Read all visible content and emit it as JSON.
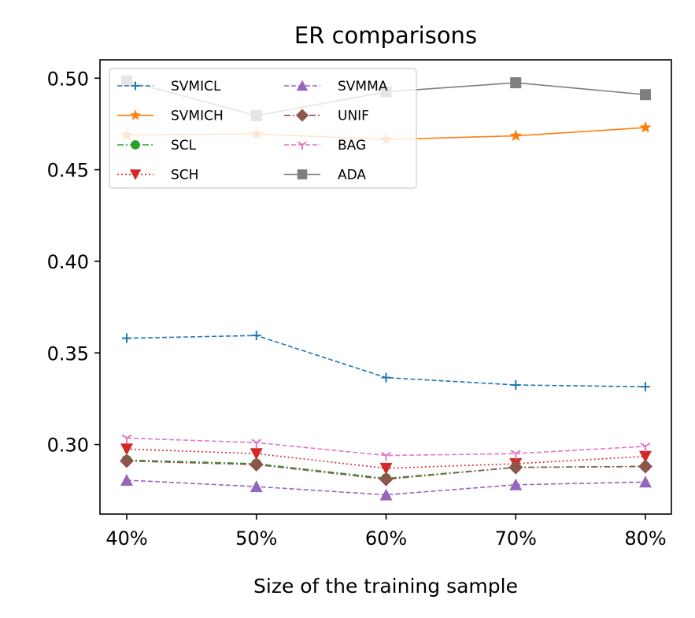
{
  "chart_data": {
    "type": "line",
    "title": "ER comparisons",
    "xlabel": "Size of the training sample",
    "ylabel": "",
    "categories": [
      "40%",
      "50%",
      "60%",
      "70%",
      "80%"
    ],
    "ylim": [
      0.262,
      0.51
    ],
    "yticks": [
      0.3,
      0.35,
      0.4,
      0.45,
      0.5
    ],
    "ytick_labels": [
      "0.30",
      "0.35",
      "0.40",
      "0.45",
      "0.50"
    ],
    "grid": false,
    "legend": {
      "placement": "top-left",
      "columns": 2
    },
    "series": [
      {
        "name": "SVMICL",
        "color": "#1f77b4",
        "dash": "dashed",
        "marker": "plus",
        "values": [
          0.358,
          0.3595,
          0.3365,
          0.3325,
          0.3315
        ]
      },
      {
        "name": "SVMICH",
        "color": "#ff7f0e",
        "dash": "solid",
        "marker": "star",
        "values": [
          0.469,
          0.4695,
          0.4665,
          0.4685,
          0.473
        ]
      },
      {
        "name": "SCL",
        "color": "#2ca02c",
        "dash": "dashdot",
        "marker": "circle",
        "values": [
          0.2915,
          0.2895,
          0.2815,
          0.2875,
          0.288
        ]
      },
      {
        "name": "SCH",
        "color": "#d62728",
        "dash": "dotted",
        "marker": "triangle-down",
        "values": [
          0.2975,
          0.295,
          0.287,
          0.2895,
          0.2935
        ]
      },
      {
        "name": "SVMMA",
        "color": "#9467bd",
        "dash": "dashed",
        "marker": "triangle-up",
        "values": [
          0.2805,
          0.277,
          0.2725,
          0.278,
          0.2795
        ]
      },
      {
        "name": "UNIF",
        "color": "#8c564b",
        "dash": "dashdot",
        "marker": "diamond",
        "values": [
          0.291,
          0.289,
          0.281,
          0.2875,
          0.288
        ]
      },
      {
        "name": "BAG",
        "color": "#e377c2",
        "dash": "dashed",
        "marker": "tri-down",
        "values": [
          0.3035,
          0.301,
          0.294,
          0.295,
          0.299
        ]
      },
      {
        "name": "ADA",
        "color": "#7f7f7f",
        "dash": "solid",
        "marker": "square",
        "values": [
          0.4985,
          0.4795,
          0.4925,
          0.4975,
          0.491
        ]
      }
    ]
  }
}
